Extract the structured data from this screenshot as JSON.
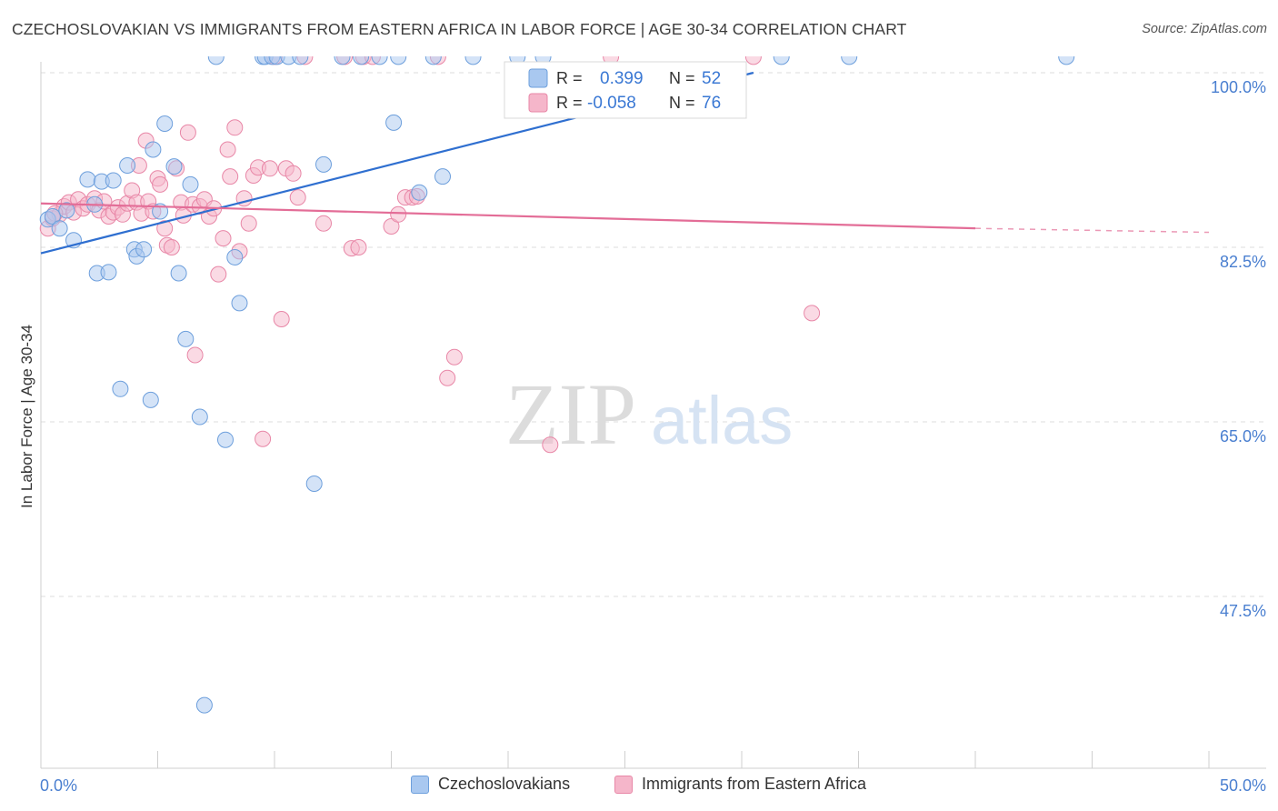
{
  "title": "CZECHOSLOVAKIAN VS IMMIGRANTS FROM EASTERN AFRICA IN LABOR FORCE | AGE 30-34 CORRELATION CHART",
  "source": "Source: ZipAtlas.com",
  "watermark": {
    "zip": "ZIP",
    "atlas": "atlas"
  },
  "colors": {
    "blue_fill": "#a9c8f0",
    "blue_stroke": "#6d9fdc",
    "blue_line": "#2f6fd0",
    "pink_fill": "#f5b6ca",
    "pink_stroke": "#e887a7",
    "pink_line": "#e36d97",
    "axis_label": "#4a7fd0",
    "grid": "#dcdcdc"
  },
  "legend": {
    "rows": [
      {
        "r_label": "R =",
        "r_value": "0.399",
        "n_label": "N =",
        "n_value": "52",
        "series": "blue"
      },
      {
        "r_label": "R =",
        "r_value": "-0.058",
        "n_label": "N =",
        "n_value": "76",
        "series": "pink"
      }
    ]
  },
  "bottom_legend": [
    {
      "label": "Czechoslovakians",
      "series": "blue"
    },
    {
      "label": "Immigrants from Eastern Africa",
      "series": "pink"
    }
  ],
  "chart_data": {
    "type": "scatter",
    "title": "CZECHOSLOVAKIAN VS IMMIGRANTS FROM EASTERN AFRICA IN LABOR FORCE | AGE 30-34 CORRELATION CHART",
    "xlabel": "",
    "ylabel": "In Labor Force | Age 30-34",
    "xlim": [
      0,
      50
    ],
    "ylim": [
      29.5,
      101.7
    ],
    "x_tick_labels": [
      "0.0%",
      "50.0%"
    ],
    "y_ticks": [
      100.0,
      82.5,
      65.0,
      47.5
    ],
    "y_tick_labels": [
      "100.0%",
      "82.5%",
      "65.0%",
      "47.5%"
    ],
    "grid": true,
    "series": [
      {
        "name": "Czechoslovakians",
        "color": "blue",
        "trend": {
          "x": [
            0.0,
            30.5
          ],
          "y": [
            81.9,
            100.0
          ]
        },
        "points": [
          [
            0.3,
            85.3
          ],
          [
            0.5,
            85.6
          ],
          [
            0.8,
            84.4
          ],
          [
            1.1,
            86.2
          ],
          [
            1.4,
            83.2
          ],
          [
            2.0,
            89.3
          ],
          [
            2.3,
            86.8
          ],
          [
            2.4,
            79.9
          ],
          [
            2.6,
            89.1
          ],
          [
            2.9,
            80.0
          ],
          [
            3.1,
            89.2
          ],
          [
            3.4,
            68.3
          ],
          [
            3.7,
            90.7
          ],
          [
            4.0,
            82.3
          ],
          [
            4.1,
            81.6
          ],
          [
            4.4,
            82.3
          ],
          [
            4.7,
            67.2
          ],
          [
            4.8,
            92.3
          ],
          [
            5.1,
            86.1
          ],
          [
            5.3,
            94.9
          ],
          [
            5.7,
            90.6
          ],
          [
            5.9,
            79.9
          ],
          [
            6.2,
            73.3
          ],
          [
            6.4,
            88.8
          ],
          [
            6.8,
            65.5
          ],
          [
            7.0,
            36.6
          ],
          [
            7.5,
            101.6
          ],
          [
            7.9,
            63.2
          ],
          [
            8.3,
            81.5
          ],
          [
            8.5,
            76.9
          ],
          [
            9.5,
            101.6
          ],
          [
            9.6,
            101.6
          ],
          [
            9.9,
            101.6
          ],
          [
            10.1,
            101.6
          ],
          [
            10.6,
            101.6
          ],
          [
            11.1,
            101.6
          ],
          [
            11.7,
            58.8
          ],
          [
            12.1,
            90.8
          ],
          [
            12.9,
            101.6
          ],
          [
            13.7,
            101.6
          ],
          [
            14.5,
            101.6
          ],
          [
            15.1,
            95.0
          ],
          [
            15.3,
            101.6
          ],
          [
            16.2,
            88.0
          ],
          [
            16.8,
            101.6
          ],
          [
            17.2,
            89.6
          ],
          [
            18.5,
            101.6
          ],
          [
            20.4,
            101.6
          ],
          [
            21.5,
            101.6
          ],
          [
            31.7,
            101.6
          ],
          [
            34.6,
            101.6
          ],
          [
            43.9,
            101.6
          ]
        ]
      },
      {
        "name": "Immigrants from Eastern Africa",
        "color": "pink",
        "trend": {
          "x": [
            0.0,
            40.0
          ],
          "y": [
            86.9,
            84.4
          ],
          "dashed_to": {
            "x": 50.0,
            "y": 84.0
          }
        },
        "points": [
          [
            0.3,
            84.4
          ],
          [
            0.5,
            85.4
          ],
          [
            0.8,
            85.8
          ],
          [
            1.0,
            86.6
          ],
          [
            1.2,
            87.0
          ],
          [
            1.4,
            86.0
          ],
          [
            1.6,
            87.3
          ],
          [
            1.8,
            86.4
          ],
          [
            2.0,
            86.8
          ],
          [
            2.3,
            87.4
          ],
          [
            2.5,
            86.2
          ],
          [
            2.7,
            87.1
          ],
          [
            2.9,
            85.6
          ],
          [
            3.1,
            86.0
          ],
          [
            3.3,
            86.5
          ],
          [
            3.5,
            85.8
          ],
          [
            3.7,
            86.9
          ],
          [
            3.9,
            88.2
          ],
          [
            4.1,
            87.0
          ],
          [
            4.2,
            90.7
          ],
          [
            4.3,
            85.9
          ],
          [
            4.5,
            93.2
          ],
          [
            4.6,
            87.1
          ],
          [
            4.8,
            86.1
          ],
          [
            5.0,
            89.4
          ],
          [
            5.1,
            88.8
          ],
          [
            5.3,
            84.4
          ],
          [
            5.4,
            82.7
          ],
          [
            5.6,
            82.5
          ],
          [
            5.8,
            90.4
          ],
          [
            6.0,
            87.0
          ],
          [
            6.1,
            85.7
          ],
          [
            6.3,
            94.0
          ],
          [
            6.5,
            86.8
          ],
          [
            6.6,
            71.7
          ],
          [
            6.8,
            86.6
          ],
          [
            7.0,
            87.3
          ],
          [
            7.2,
            85.6
          ],
          [
            7.4,
            86.4
          ],
          [
            7.6,
            79.8
          ],
          [
            7.8,
            83.4
          ],
          [
            8.0,
            92.3
          ],
          [
            8.1,
            89.6
          ],
          [
            8.3,
            94.5
          ],
          [
            8.5,
            82.1
          ],
          [
            8.7,
            87.4
          ],
          [
            8.9,
            84.9
          ],
          [
            9.1,
            89.7
          ],
          [
            9.3,
            90.5
          ],
          [
            9.5,
            63.3
          ],
          [
            9.8,
            90.4
          ],
          [
            10.0,
            101.6
          ],
          [
            10.3,
            75.3
          ],
          [
            10.5,
            90.4
          ],
          [
            10.8,
            89.9
          ],
          [
            11.0,
            87.5
          ],
          [
            11.3,
            101.6
          ],
          [
            12.1,
            84.9
          ],
          [
            13.0,
            101.6
          ],
          [
            13.3,
            82.4
          ],
          [
            13.6,
            82.5
          ],
          [
            13.8,
            101.6
          ],
          [
            14.2,
            101.6
          ],
          [
            15.0,
            84.6
          ],
          [
            15.3,
            85.8
          ],
          [
            15.6,
            87.5
          ],
          [
            15.9,
            87.5
          ],
          [
            17.0,
            101.6
          ],
          [
            17.4,
            69.4
          ],
          [
            17.7,
            71.5
          ],
          [
            21.8,
            62.7
          ],
          [
            24.4,
            101.6
          ],
          [
            30.5,
            101.6
          ],
          [
            33.0,
            75.9
          ],
          [
            0.6,
            85.9
          ],
          [
            16.1,
            87.6
          ]
        ]
      }
    ]
  }
}
